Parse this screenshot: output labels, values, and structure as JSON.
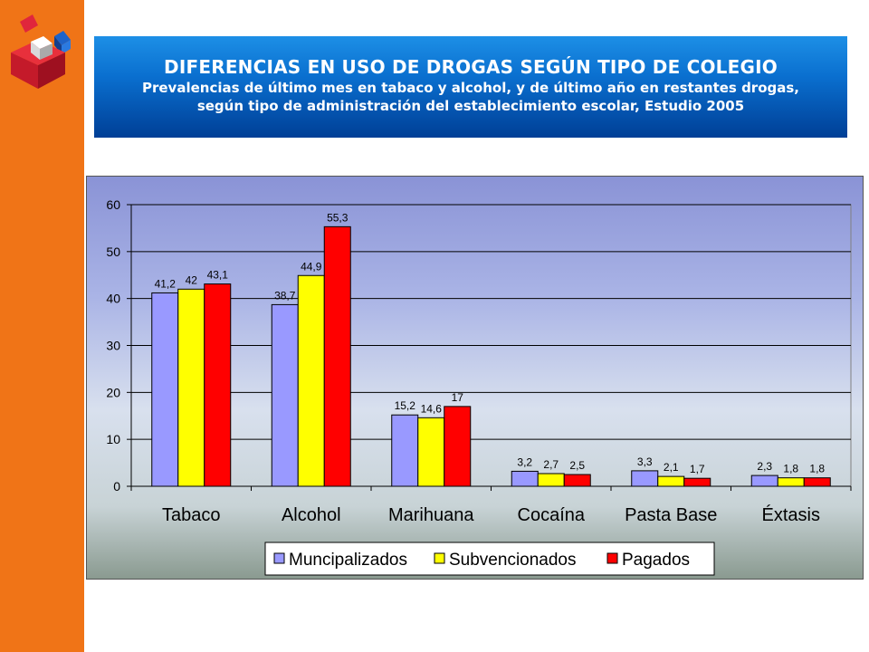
{
  "header": {
    "title": "DIFERENCIAS EN USO DE DROGAS SEGÚN TIPO DE COLEGIO",
    "subtitle_line1": "Prevalencias de último mes en tabaco y alcohol, y de último año en restantes drogas,",
    "subtitle_line2": "según tipo de administración del establecimiento escolar,  Estudio 2005"
  },
  "colors": {
    "sidebar": "#f07417",
    "header_top": "#1d8fe6",
    "header_bottom": "#003f96"
  },
  "chart_data": {
    "type": "bar",
    "categories": [
      "Tabaco",
      "Alcohol",
      "Marihuana",
      "Cocaína",
      "Pasta Base",
      "Éxtasis"
    ],
    "series": [
      {
        "name": "Muncipalizados",
        "color": "#9999ff",
        "values": [
          41.2,
          38.7,
          15.2,
          3.2,
          3.3,
          2.3
        ],
        "labels": [
          "41,2",
          "38,7",
          "15,2",
          "3,2",
          "3,3",
          "2,3"
        ]
      },
      {
        "name": "Subvencionados",
        "color": "#ffff00",
        "values": [
          42,
          44.9,
          14.6,
          2.7,
          2.1,
          1.8
        ],
        "labels": [
          "42",
          "44,9",
          "14,6",
          "2,7",
          "2,1",
          "1,8"
        ]
      },
      {
        "name": "Pagados",
        "color": "#ff0000",
        "values": [
          43.1,
          55.3,
          17,
          2.5,
          1.7,
          1.8
        ],
        "labels": [
          "43,1",
          "55,3",
          "17",
          "2,5",
          "1,7",
          "1,8"
        ]
      }
    ],
    "ylim": [
      0,
      60
    ],
    "yticks": [
      0,
      10,
      20,
      30,
      40,
      50,
      60
    ],
    "grid": true,
    "legend": "bottom"
  }
}
